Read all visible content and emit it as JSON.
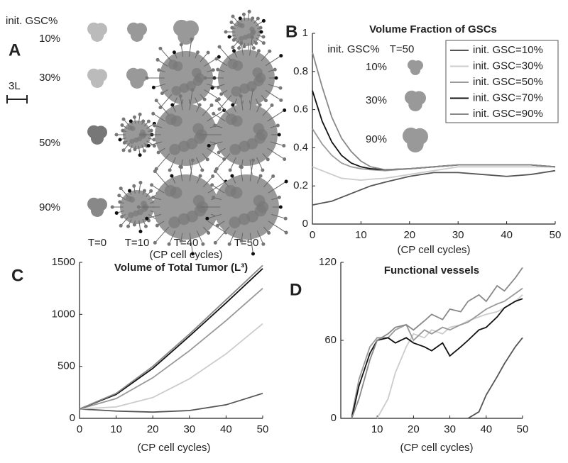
{
  "panel_a": {
    "letter": "A",
    "header": "init. GSC%",
    "rows": [
      "10%",
      "30%",
      "50%",
      "90%"
    ],
    "scale": "3L",
    "times": [
      "T=0",
      "T=10",
      "T=40",
      "T=50"
    ],
    "xlabel": "(CP cell cycles)"
  },
  "chart_data": [
    {
      "type": "line",
      "letter": "B",
      "title": "Volume Fraction of GSCs",
      "xlabel": "(CP cell cycles)",
      "x": [
        0,
        2,
        4,
        6,
        8,
        10,
        12,
        15,
        20,
        25,
        30,
        35,
        40,
        45,
        50
      ],
      "xlim": [
        0,
        50
      ],
      "xticks": [
        0,
        10,
        20,
        30,
        40,
        50
      ],
      "ylim": [
        0,
        1
      ],
      "yticks": [
        0,
        0.2,
        0.4,
        0.6,
        0.8,
        1
      ],
      "legend": "upper right",
      "inset": {
        "header": "init. GSC%",
        "time": "T=50",
        "rows": [
          "10%",
          "30%",
          "90%"
        ]
      },
      "series": [
        {
          "name": "init. GSC=10%",
          "color": "#555555",
          "values": [
            0.1,
            0.11,
            0.12,
            0.14,
            0.16,
            0.18,
            0.2,
            0.22,
            0.25,
            0.27,
            0.27,
            0.26,
            0.25,
            0.26,
            0.28
          ]
        },
        {
          "name": "init. GSC=30%",
          "color": "#cccccc",
          "values": [
            0.3,
            0.28,
            0.26,
            0.24,
            0.235,
            0.23,
            0.235,
            0.24,
            0.26,
            0.28,
            0.3,
            0.3,
            0.3,
            0.3,
            0.3
          ]
        },
        {
          "name": "init. GSC=50%",
          "color": "#999999",
          "values": [
            0.5,
            0.42,
            0.36,
            0.32,
            0.3,
            0.29,
            0.285,
            0.28,
            0.29,
            0.3,
            0.31,
            0.31,
            0.31,
            0.31,
            0.3
          ]
        },
        {
          "name": "init. GSC=70%",
          "color": "#111111",
          "values": [
            0.7,
            0.54,
            0.43,
            0.36,
            0.32,
            0.3,
            0.29,
            0.285,
            0.29,
            0.3,
            0.31,
            0.31,
            0.31,
            0.31,
            0.3
          ]
        },
        {
          "name": "init. GSC=90%",
          "color": "#888888",
          "values": [
            0.9,
            0.72,
            0.56,
            0.45,
            0.38,
            0.33,
            0.3,
            0.285,
            0.29,
            0.3,
            0.31,
            0.31,
            0.31,
            0.31,
            0.3
          ]
        }
      ]
    },
    {
      "type": "line",
      "letter": "C",
      "title": "Volume of Total Tumor (L³)",
      "xlabel": "(CP cell cycles)",
      "x": [
        0,
        10,
        20,
        30,
        40,
        50
      ],
      "xlim": [
        0,
        50
      ],
      "xticks": [
        0,
        10,
        20,
        30,
        40,
        50
      ],
      "ylim": [
        0,
        1500
      ],
      "yticks": [
        0,
        500,
        1000,
        1500
      ],
      "series": [
        {
          "color": "#555555",
          "values": [
            90,
            70,
            60,
            75,
            130,
            240
          ]
        },
        {
          "color": "#cccccc",
          "values": [
            90,
            110,
            200,
            380,
            620,
            910
          ]
        },
        {
          "color": "#999999",
          "values": [
            90,
            190,
            390,
            650,
            940,
            1250
          ]
        },
        {
          "color": "#111111",
          "values": [
            90,
            230,
            480,
            790,
            1110,
            1440
          ]
        },
        {
          "color": "#888888",
          "values": [
            90,
            240,
            500,
            810,
            1140,
            1470
          ]
        }
      ]
    },
    {
      "type": "line",
      "letter": "D",
      "title": "Functional vessels",
      "xlabel": "(CP cell cycles)",
      "x": [
        0,
        3,
        5,
        8,
        10,
        13,
        15,
        18,
        20,
        23,
        25,
        28,
        30,
        33,
        35,
        38,
        40,
        43,
        45,
        48,
        50
      ],
      "xlim": [
        0,
        50
      ],
      "xticks": [
        10,
        20,
        30,
        40,
        50
      ],
      "ylim": [
        0,
        120
      ],
      "yticks": [
        0,
        60,
        120
      ],
      "series": [
        {
          "color": "#555555",
          "values": [
            null,
            null,
            null,
            null,
            null,
            null,
            null,
            null,
            null,
            null,
            null,
            null,
            null,
            null,
            0,
            5,
            18,
            32,
            42,
            55,
            62
          ]
        },
        {
          "color": "#cccccc",
          "values": [
            null,
            null,
            null,
            null,
            0,
            15,
            35,
            55,
            65,
            62,
            68,
            65,
            70,
            72,
            75,
            78,
            80,
            82,
            85,
            90,
            95
          ]
        },
        {
          "color": "#999999",
          "values": [
            null,
            2,
            30,
            55,
            62,
            62,
            68,
            72,
            60,
            68,
            65,
            70,
            68,
            72,
            74,
            80,
            84,
            88,
            90,
            96,
            100
          ]
        },
        {
          "color": "#111111",
          "values": [
            null,
            0,
            25,
            50,
            60,
            62,
            58,
            62,
            58,
            55,
            52,
            58,
            48,
            55,
            60,
            68,
            70,
            78,
            85,
            90,
            92
          ]
        },
        {
          "color": "#888888",
          "values": [
            null,
            0,
            15,
            45,
            60,
            65,
            70,
            72,
            68,
            75,
            80,
            76,
            84,
            82,
            90,
            95,
            90,
            102,
            98,
            108,
            116
          ]
        }
      ]
    }
  ]
}
